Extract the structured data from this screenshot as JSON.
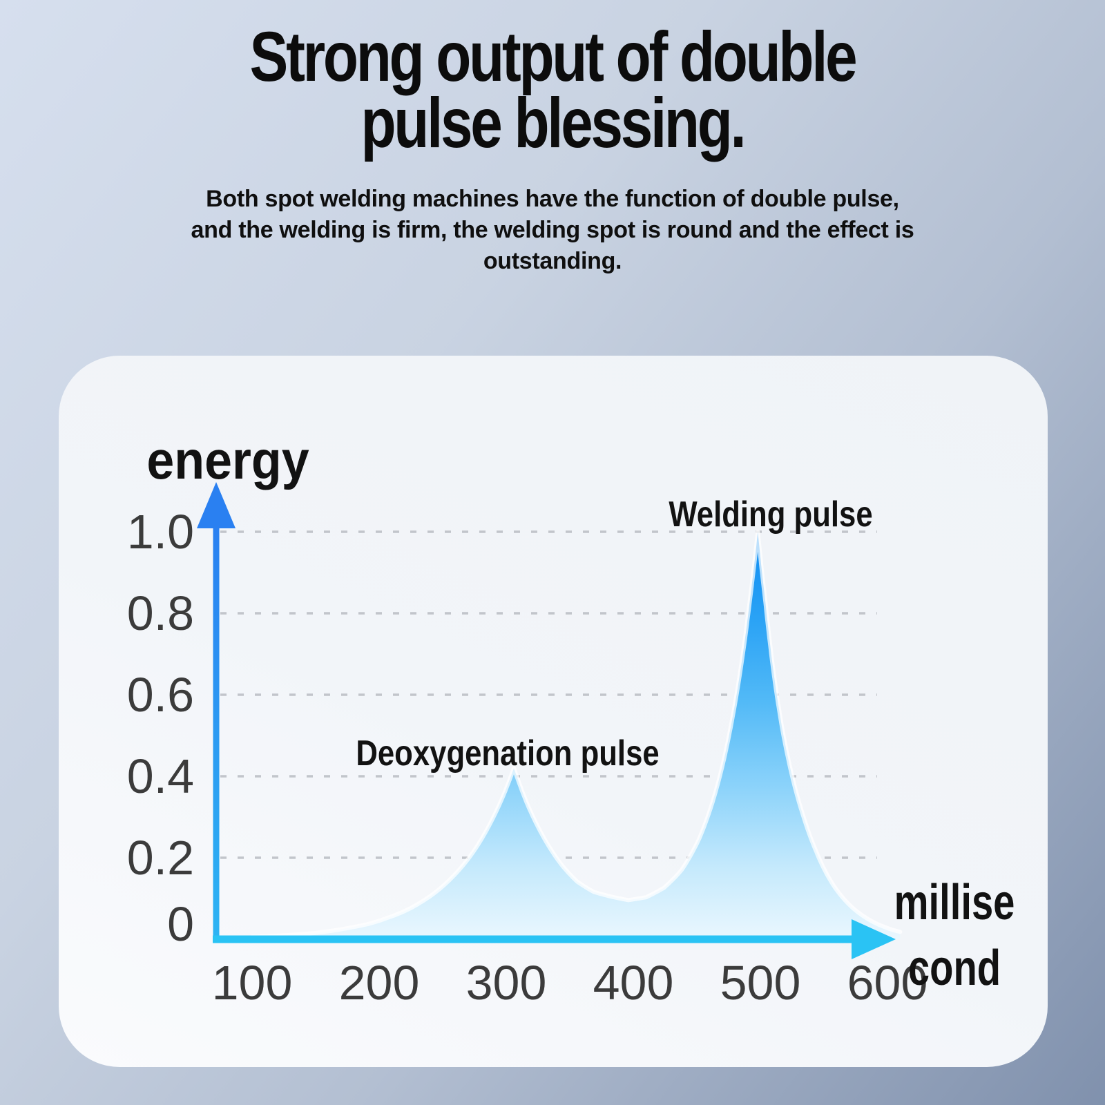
{
  "header": {
    "title_lines": [
      "Strong output of double",
      "pulse blessing."
    ],
    "subtitle_lines": [
      "Both spot welding machines have the function of double pulse,",
      "and the welding is firm, the welding spot is round and the effect is",
      "outstanding."
    ]
  },
  "colors": {
    "background_top_left": "#d6dfee",
    "background_mid": "#b3bfd2",
    "background_bottom_right": "#8091ad",
    "card_background": "#f0f3f7",
    "title_text": "#0c0c0c",
    "label_text": "#121212",
    "tick_text": "#3b3b3b",
    "gridline": "#c2c5cb",
    "y_axis_top": "#2a80f1",
    "y_axis_bottom": "#2db4f3",
    "x_axis": "#2ac3f4",
    "curve_edge": "rgba(255,255,255,0.72)",
    "area_gradient_stops": [
      [
        "0",
        "#0e8cf2"
      ],
      [
        "0.22",
        "#2ba3f5"
      ],
      [
        "0.42",
        "#53baf7"
      ],
      [
        "0.62",
        "#8ad2fa"
      ],
      [
        "0.82",
        "#c4e9fc"
      ],
      [
        "1",
        "#eaf7fe"
      ]
    ]
  },
  "chart_data": {
    "type": "area",
    "title": "",
    "ylabel": "energy",
    "xlabel_lines": [
      "millise",
      "cond"
    ],
    "x_ticks": [
      "100",
      "200",
      "300",
      "400",
      "500",
      "600"
    ],
    "y_ticks": [
      "0",
      "0.2",
      "0.4",
      "0.6",
      "0.8",
      "1.0"
    ],
    "xlim": [
      75,
      640
    ],
    "ylim": [
      0,
      1.12
    ],
    "grid": "horizontal-dotted",
    "legend": "none",
    "peaks": [
      {
        "label": "Deoxygenation pulse",
        "x": 306,
        "y": 0.42
      },
      {
        "label": "Welding pulse",
        "x": 498,
        "y": 1.0
      }
    ],
    "series": [
      {
        "name": "double pulse energy curve",
        "points": [
          [
            100,
            0.006
          ],
          [
            116,
            0.008
          ],
          [
            132,
            0.011
          ],
          [
            148,
            0.015
          ],
          [
            163,
            0.021
          ],
          [
            178,
            0.029
          ],
          [
            192,
            0.038
          ],
          [
            206,
            0.052
          ],
          [
            220,
            0.069
          ],
          [
            234,
            0.093
          ],
          [
            247,
            0.122
          ],
          [
            259,
            0.157
          ],
          [
            270,
            0.197
          ],
          [
            280,
            0.243
          ],
          [
            289,
            0.294
          ],
          [
            296,
            0.34
          ],
          [
            302,
            0.386
          ],
          [
            306,
            0.42
          ],
          [
            310,
            0.385
          ],
          [
            316,
            0.336
          ],
          [
            324,
            0.282
          ],
          [
            333,
            0.231
          ],
          [
            344,
            0.181
          ],
          [
            356,
            0.141
          ],
          [
            369,
            0.116
          ],
          [
            382,
            0.105
          ],
          [
            396,
            0.096
          ],
          [
            410,
            0.103
          ],
          [
            424,
            0.126
          ],
          [
            438,
            0.17
          ],
          [
            452,
            0.248
          ],
          [
            462,
            0.333
          ],
          [
            471,
            0.437
          ],
          [
            479,
            0.56
          ],
          [
            486,
            0.695
          ],
          [
            492,
            0.838
          ],
          [
            498,
            1.0
          ],
          [
            504,
            0.826
          ],
          [
            510,
            0.664
          ],
          [
            517,
            0.52
          ],
          [
            525,
            0.4
          ],
          [
            534,
            0.3
          ],
          [
            544,
            0.215
          ],
          [
            556,
            0.14
          ],
          [
            569,
            0.088
          ],
          [
            583,
            0.053
          ],
          [
            597,
            0.031
          ],
          [
            610,
            0.018
          ]
        ]
      }
    ]
  }
}
